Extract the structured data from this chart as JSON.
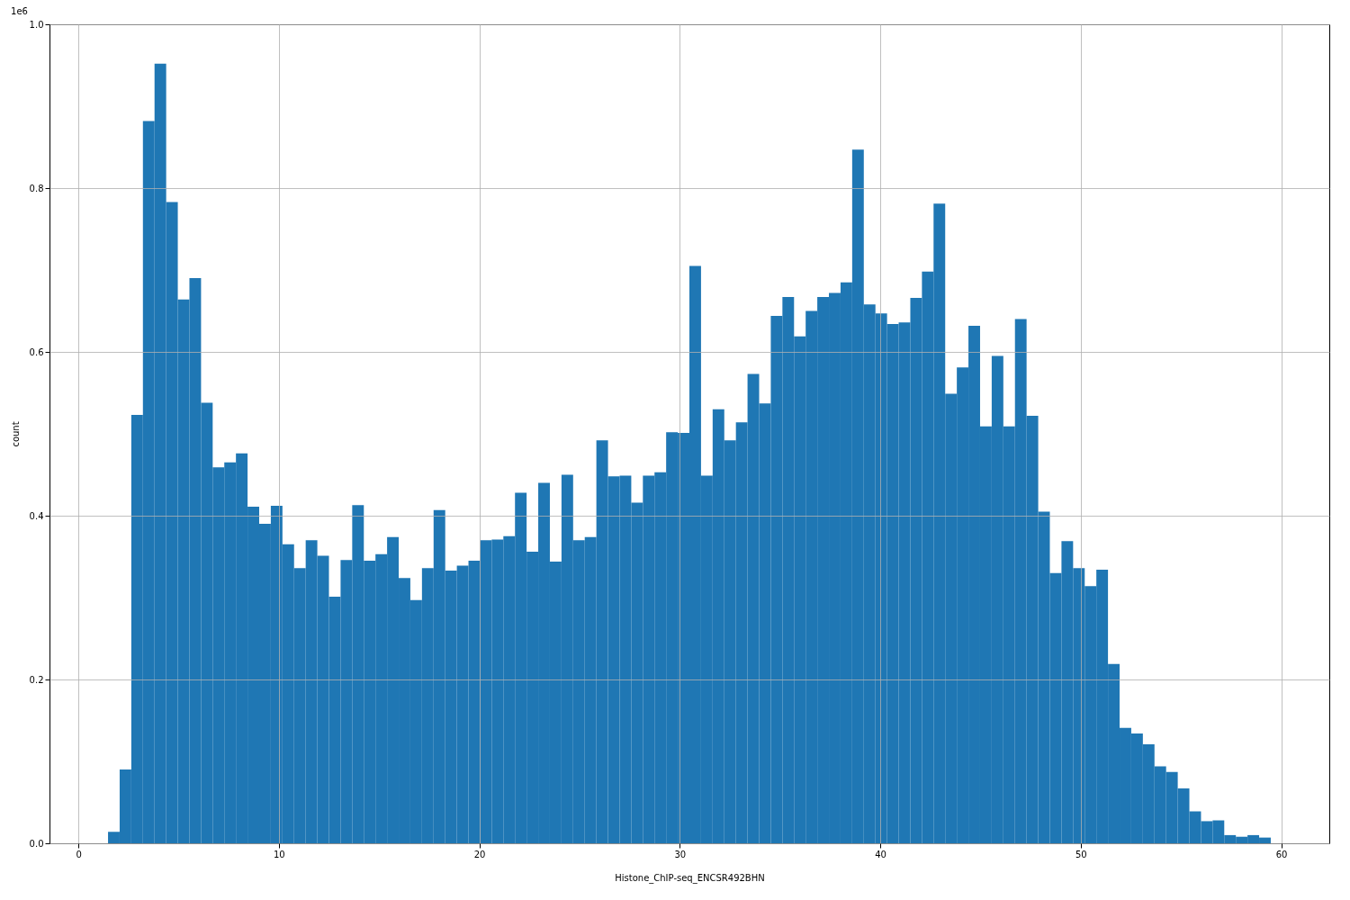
{
  "chart_data": {
    "type": "histogram",
    "xlabel": "Histone_ChIP-seq_ENCSR492BHN",
    "ylabel": "count",
    "annotations": [
      "1e6"
    ],
    "color": "#1f77b4",
    "bins": [
      1.48,
      2.06,
      2.64,
      3.22,
      3.8,
      4.38,
      4.96,
      5.54,
      6.12,
      6.7,
      7.28,
      7.86,
      8.44,
      9.02,
      9.6,
      10.18,
      10.76,
      11.34,
      11.92,
      12.5,
      13.08,
      13.66,
      14.24,
      14.82,
      15.4,
      15.98,
      16.56,
      17.14,
      17.72,
      18.3,
      18.88,
      19.46,
      20.04,
      20.62,
      21.2,
      21.78,
      22.36,
      22.94,
      23.52,
      24.1,
      24.68,
      25.26,
      25.84,
      26.42,
      27.0,
      27.58,
      28.16,
      28.74,
      29.32,
      29.9,
      30.48,
      31.06,
      31.64,
      32.22,
      32.8,
      33.38,
      33.96,
      34.54,
      35.12,
      35.7,
      36.28,
      36.86,
      37.44,
      38.02,
      38.6,
      39.18,
      39.76,
      40.34,
      40.92,
      41.5,
      42.08,
      42.66,
      43.24,
      43.82,
      44.4,
      44.98,
      45.56,
      46.14,
      46.72,
      47.3,
      47.88,
      48.46,
      49.04,
      49.62,
      50.2,
      50.78,
      51.36,
      51.94,
      52.52,
      53.1,
      53.68,
      54.26,
      54.84,
      55.42,
      56.0,
      56.58,
      57.16,
      57.74,
      58.32,
      58.9,
      59.48
    ],
    "values": [
      0.014,
      0.09,
      0.523,
      0.882,
      0.952,
      0.783,
      0.664,
      0.69,
      0.538,
      0.459,
      0.465,
      0.476,
      0.411,
      0.39,
      0.412,
      0.365,
      0.336,
      0.37,
      0.351,
      0.301,
      0.346,
      0.413,
      0.345,
      0.353,
      0.374,
      0.324,
      0.297,
      0.336,
      0.407,
      0.333,
      0.339,
      0.345,
      0.37,
      0.371,
      0.375,
      0.428,
      0.356,
      0.44,
      0.344,
      0.45,
      0.37,
      0.374,
      0.492,
      0.448,
      0.449,
      0.416,
      0.449,
      0.453,
      0.502,
      0.501,
      0.705,
      0.449,
      0.53,
      0.492,
      0.514,
      0.573,
      0.537,
      0.644,
      0.667,
      0.619,
      0.65,
      0.667,
      0.672,
      0.685,
      0.847,
      0.658,
      0.647,
      0.634,
      0.636,
      0.666,
      0.698,
      0.781,
      0.549,
      0.581,
      0.632,
      0.509,
      0.595,
      0.509,
      0.64,
      0.522,
      0.405,
      0.33,
      0.369,
      0.336,
      0.314,
      0.334,
      0.219,
      0.141,
      0.134,
      0.121,
      0.094,
      0.087,
      0.067,
      0.039,
      0.027,
      0.028,
      0.01,
      0.008,
      0.01,
      0.007
    ],
    "xlim": [
      -1.44,
      62.4
    ],
    "ylim": [
      0,
      1.0
    ],
    "xticks": [
      0,
      10,
      20,
      30,
      40,
      50,
      60
    ],
    "yticks": [
      {
        "value": 0,
        "label": "0.0"
      },
      0.2,
      0.4,
      0.6,
      0.8,
      {
        "value": 1,
        "label": "1.0"
      }
    ],
    "grid": true
  }
}
